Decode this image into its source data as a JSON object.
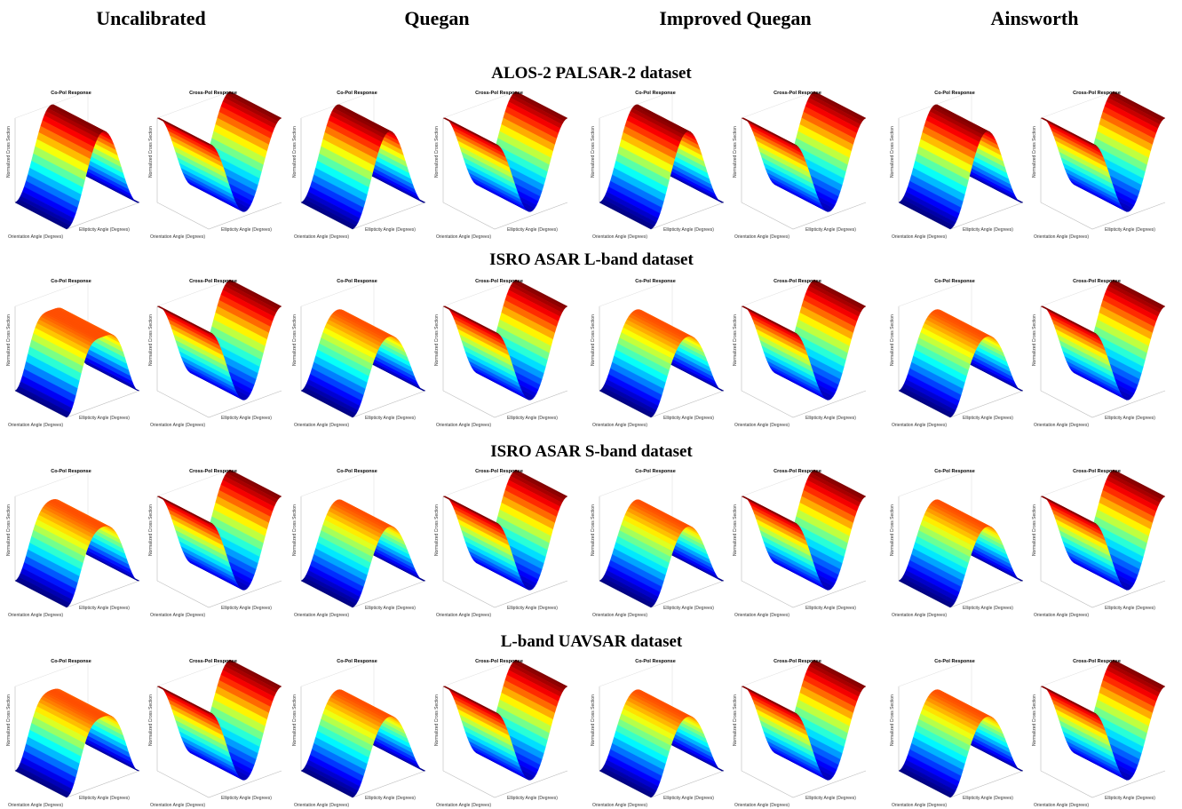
{
  "columns": [
    "Uncalibrated",
    "Quegan",
    "Improved Quegan",
    "Ainsworth"
  ],
  "rows": [
    "ALOS-2 PALSAR-2 dataset",
    "ISRO ASAR L-band dataset",
    "ISRO ASAR S-band dataset",
    "L-band UAVSAR dataset"
  ],
  "plot": {
    "co_title": "Co-Pol Response",
    "cross_title": "Cross-Pol Response",
    "z_label": "Normalized Cross Section",
    "x_label": "Orientation Angle (Degrees)",
    "y_label": "Ellipticity Angle (Degrees)"
  }
}
